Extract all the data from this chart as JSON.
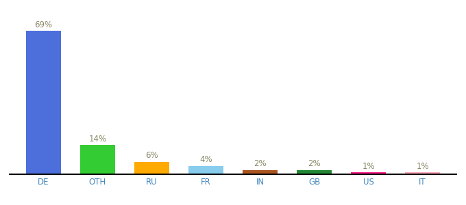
{
  "categories": [
    "DE",
    "OTH",
    "RU",
    "FR",
    "IN",
    "GB",
    "US",
    "IT"
  ],
  "values": [
    69,
    14,
    6,
    4,
    2,
    2,
    1,
    1
  ],
  "bar_colors": [
    "#4d6fdb",
    "#33cc33",
    "#ffaa00",
    "#88ccee",
    "#aa5522",
    "#228833",
    "#ff1e8c",
    "#ffaabb"
  ],
  "background_color": "#ffffff",
  "ylim": [
    0,
    76
  ],
  "label_fontsize": 8.5,
  "tick_fontsize": 8.5,
  "label_color": "#888866",
  "tick_color": "#4488bb"
}
